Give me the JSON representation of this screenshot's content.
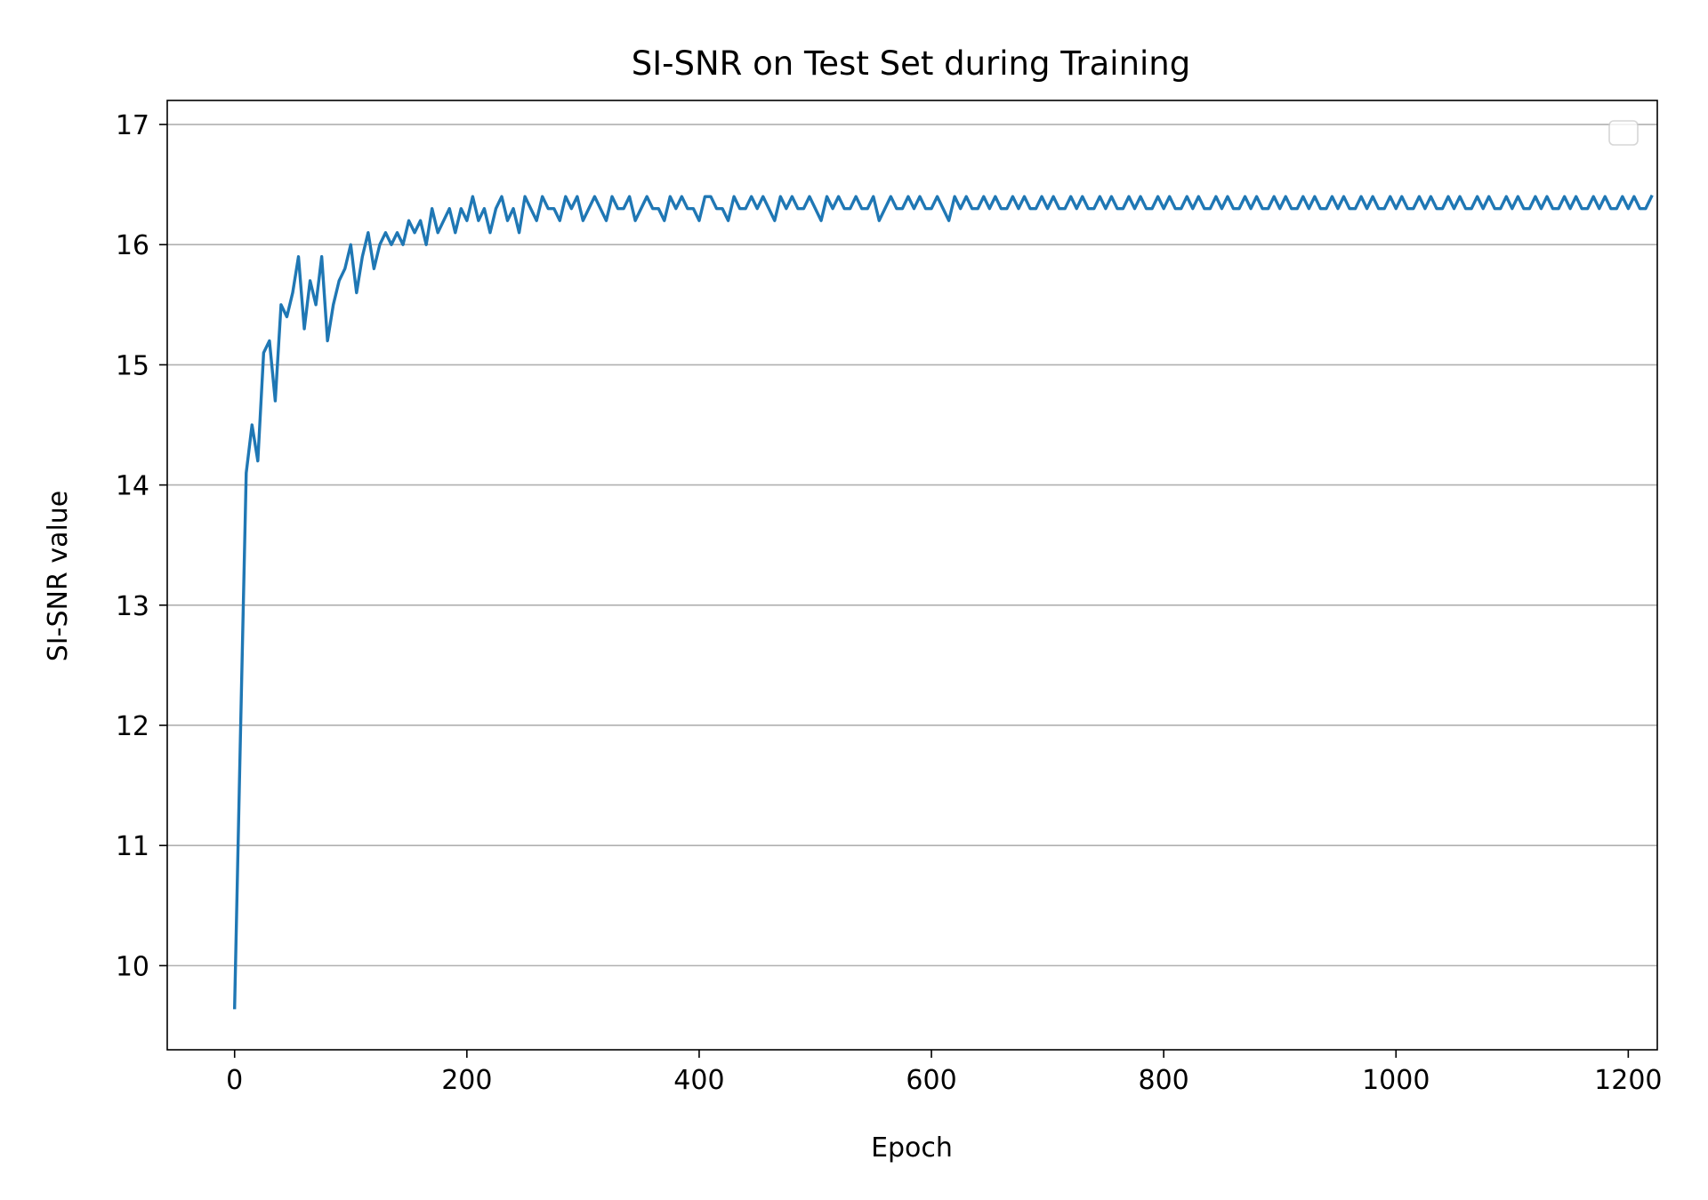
{
  "chart_data": {
    "type": "line",
    "title": "SI-SNR on Test Set during Training",
    "xlabel": "Epoch",
    "ylabel": "SI-SNR value",
    "xlim": [
      -58,
      1225
    ],
    "ylim": [
      9.3,
      17.2
    ],
    "x_ticks": [
      0,
      200,
      400,
      600,
      800,
      1000,
      1200
    ],
    "x_tick_labels": [
      "0",
      "200",
      "400",
      "600",
      "800",
      "1000",
      "1200"
    ],
    "y_ticks": [
      10,
      11,
      12,
      13,
      14,
      15,
      16,
      17
    ],
    "y_tick_labels": [
      "10",
      "11",
      "12",
      "13",
      "14",
      "15",
      "16",
      "17"
    ],
    "grid": "y-axis",
    "legend": "upper right (empty)",
    "color": "#1f77b4",
    "series": [
      {
        "x_start": 0,
        "x_step": 5,
        "values": [
          9.65,
          11.9,
          14.1,
          14.5,
          14.2,
          15.1,
          15.2,
          14.7,
          15.5,
          15.4,
          15.6,
          15.9,
          15.3,
          15.7,
          15.5,
          15.9,
          15.2,
          15.5,
          15.7,
          15.8,
          16.0,
          15.6,
          15.9,
          16.1,
          15.8,
          16.0,
          16.1,
          16.0,
          16.1,
          16.0,
          16.2,
          16.1,
          16.2,
          16.0,
          16.3,
          16.1,
          16.2,
          16.3,
          16.1,
          16.3,
          16.2,
          16.4,
          16.2,
          16.3,
          16.1,
          16.3,
          16.4,
          16.2,
          16.3,
          16.1,
          16.4,
          16.3,
          16.2,
          16.4,
          16.3,
          16.3,
          16.2,
          16.4,
          16.3,
          16.4,
          16.2,
          16.3,
          16.4,
          16.3,
          16.2,
          16.4,
          16.3,
          16.3,
          16.4,
          16.2,
          16.3,
          16.4,
          16.3,
          16.3,
          16.2,
          16.4,
          16.3,
          16.4,
          16.3,
          16.3,
          16.2,
          16.4,
          16.4,
          16.3,
          16.3,
          16.2,
          16.4,
          16.3,
          16.3,
          16.4,
          16.3,
          16.4,
          16.3,
          16.2,
          16.4,
          16.3,
          16.4,
          16.3,
          16.3,
          16.4,
          16.3,
          16.2,
          16.4,
          16.3,
          16.4,
          16.3,
          16.3,
          16.4,
          16.3,
          16.3,
          16.4,
          16.2,
          16.3,
          16.4,
          16.3,
          16.3,
          16.4,
          16.3,
          16.4,
          16.3,
          16.3,
          16.4,
          16.3,
          16.2,
          16.4,
          16.3,
          16.4,
          16.3,
          16.3,
          16.4,
          16.3,
          16.4,
          16.3,
          16.3,
          16.4,
          16.3,
          16.4,
          16.3,
          16.3,
          16.4,
          16.3,
          16.4,
          16.3,
          16.3,
          16.4,
          16.3,
          16.4,
          16.3,
          16.3,
          16.4,
          16.3,
          16.4,
          16.3,
          16.3,
          16.4,
          16.3,
          16.4,
          16.3,
          16.3,
          16.4,
          16.3,
          16.4,
          16.3,
          16.3,
          16.4,
          16.3,
          16.4,
          16.3,
          16.3,
          16.4,
          16.3,
          16.4,
          16.3,
          16.3,
          16.4,
          16.3,
          16.4,
          16.3,
          16.3,
          16.4,
          16.3,
          16.4,
          16.3,
          16.3,
          16.4,
          16.3,
          16.4,
          16.3,
          16.3,
          16.4,
          16.3,
          16.4,
          16.3,
          16.3,
          16.4,
          16.3,
          16.4,
          16.3,
          16.3,
          16.4,
          16.3,
          16.4,
          16.3,
          16.3,
          16.4,
          16.3,
          16.4,
          16.3,
          16.3,
          16.4,
          16.3,
          16.4,
          16.3,
          16.3,
          16.4,
          16.3,
          16.4,
          16.3,
          16.3,
          16.4,
          16.3,
          16.4,
          16.3,
          16.3,
          16.4,
          16.3,
          16.4,
          16.3,
          16.3,
          16.4,
          16.3,
          16.4,
          16.3,
          16.3,
          16.4,
          16.3,
          16.4,
          16.3,
          16.3,
          16.4,
          16.3,
          16.4,
          16.3,
          16.3,
          16.4
        ]
      }
    ]
  }
}
